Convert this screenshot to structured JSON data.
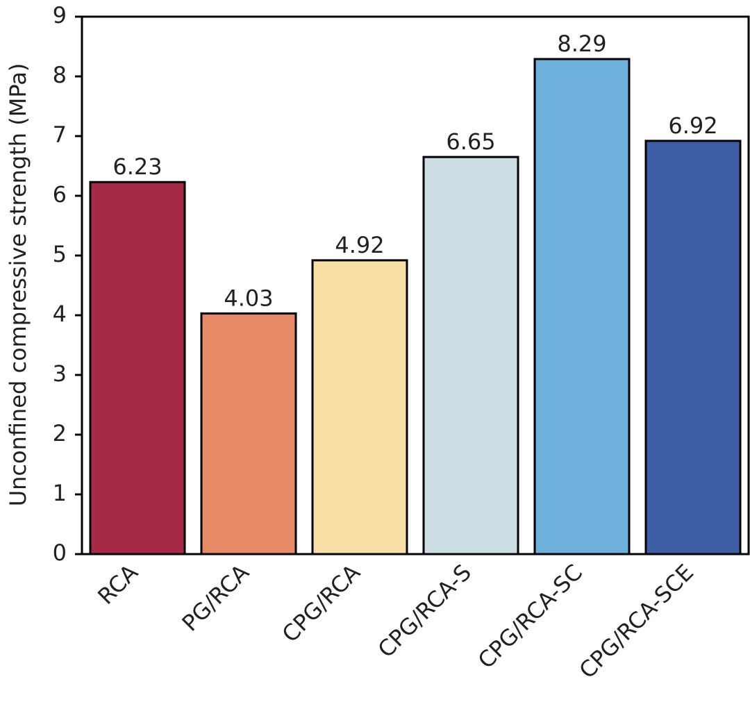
{
  "chart_data": {
    "type": "bar",
    "y_label": "Unconfined compressive strength (MPa)",
    "categories": [
      "RCA",
      "PG/RCA",
      "CPG/RCA",
      "CPG/RCA-S",
      "CPG/RCA-SC",
      "CPG/RCA-SCE"
    ],
    "values": [
      6.23,
      4.03,
      4.92,
      6.65,
      8.29,
      6.92
    ],
    "colors": [
      "#a52a45",
      "#e68a65",
      "#f7dfa6",
      "#ccdfe5",
      "#6cb0db",
      "#3d5ea5"
    ],
    "ylim": [
      0,
      9
    ],
    "yticks": [
      0,
      1,
      2,
      3,
      4,
      5,
      6,
      7,
      8,
      9
    ]
  }
}
